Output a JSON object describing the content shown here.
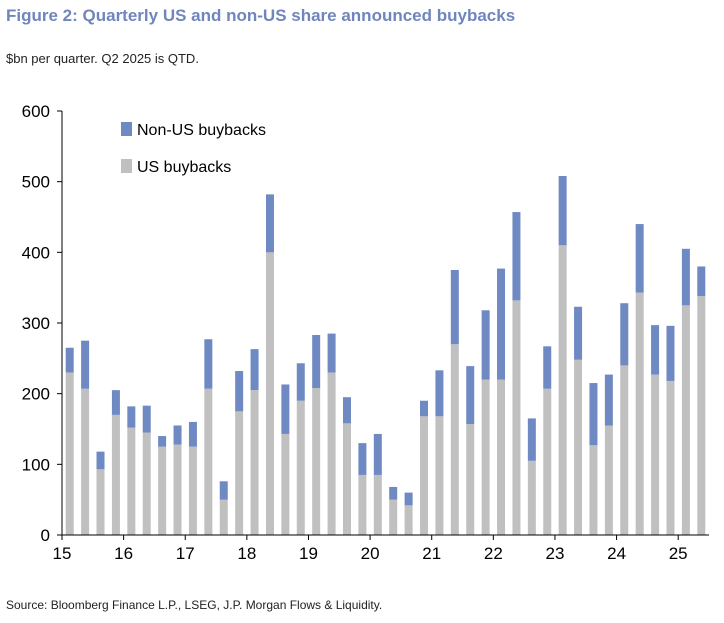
{
  "title": "Figure 2: Quarterly US and non-US share announced buybacks",
  "subtitle": "$bn per quarter. Q2 2025 is QTD.",
  "source": "Source: Bloomberg Finance L.P., LSEG, J.P. Morgan Flows & Liquidity.",
  "colors": {
    "us": "#c0c0c0",
    "non_us": "#6f89c2",
    "axis": "#000000"
  },
  "chart_data": {
    "type": "bar",
    "stacked": true,
    "x_tick_labels": [
      "15",
      "16",
      "17",
      "18",
      "19",
      "20",
      "21",
      "22",
      "23",
      "24",
      "25"
    ],
    "y_ticks": [
      "0",
      "100",
      "200",
      "300",
      "400",
      "500",
      "600"
    ],
    "ylim": [
      0,
      600
    ],
    "legend_position": "top-left",
    "grid": false,
    "categories": [
      "Q1 2015",
      "Q2 2015",
      "Q3 2015",
      "Q4 2015",
      "Q1 2016",
      "Q2 2016",
      "Q3 2016",
      "Q4 2016",
      "Q1 2017",
      "Q2 2017",
      "Q3 2017",
      "Q4 2017",
      "Q1 2018",
      "Q2 2018",
      "Q3 2018",
      "Q4 2018",
      "Q1 2019",
      "Q2 2019",
      "Q3 2019",
      "Q4 2019",
      "Q1 2020",
      "Q2 2020",
      "Q3 2020",
      "Q4 2020",
      "Q1 2021",
      "Q2 2021",
      "Q3 2021",
      "Q4 2021",
      "Q1 2022",
      "Q2 2022",
      "Q3 2022",
      "Q4 2022",
      "Q1 2023",
      "Q2 2023",
      "Q3 2023",
      "Q4 2023",
      "Q1 2024",
      "Q2 2024",
      "Q3 2024",
      "Q4 2024",
      "Q1 2025",
      "Q2 2025"
    ],
    "series": [
      {
        "name": "US buybacks",
        "values": [
          230,
          207,
          93,
          170,
          152,
          145,
          125,
          128,
          125,
          207,
          50,
          175,
          205,
          400,
          143,
          190,
          208,
          230,
          158,
          85,
          85,
          50,
          42,
          168,
          168,
          270,
          157,
          220,
          220,
          332,
          105,
          207,
          410,
          248,
          127,
          155,
          240,
          343,
          227,
          218,
          325,
          338
        ]
      },
      {
        "name": "Non-US buybacks",
        "values": [
          35,
          68,
          25,
          35,
          30,
          38,
          15,
          27,
          35,
          70,
          26,
          57,
          58,
          82,
          70,
          53,
          75,
          55,
          37,
          45,
          58,
          18,
          18,
          22,
          65,
          105,
          82,
          98,
          157,
          125,
          60,
          60,
          98,
          75,
          88,
          72,
          88,
          97,
          70,
          78,
          80,
          42
        ]
      }
    ],
    "legend": [
      "Non-US buybacks",
      "US buybacks"
    ]
  }
}
